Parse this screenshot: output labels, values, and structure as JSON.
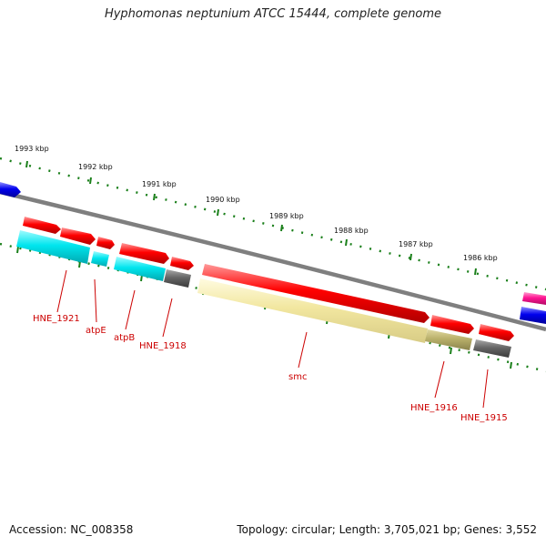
{
  "title": "Hyphomonas neptunium ATCC 15444, complete genome",
  "footer": {
    "accession": "Accession: NC_008358",
    "stats": "Topology: circular; Length: 3,705,021 bp; Genes: 3,552"
  },
  "ruler": [
    "1993 kbp",
    "1992 kbp",
    "1991 kbp",
    "1990 kbp",
    "1989 kbp",
    "1988 kbp",
    "1987 kbp",
    "1986 kbp"
  ],
  "genes": [
    "HNE_1921",
    "atpE",
    "atpB",
    "HNE_1918",
    "smc",
    "HNE_1916",
    "HNE_1915"
  ],
  "colors": {
    "cds": "#ff0000",
    "cyan": "#00e5ee",
    "grey": "#666666",
    "yellow": "#f2e7a0",
    "olive": "#b9b06a",
    "blue": "#0000ee",
    "pink": "#ff1493",
    "tick": "#1a7f1a",
    "backbone": "#7f7f7f",
    "label": "#cc0000"
  }
}
